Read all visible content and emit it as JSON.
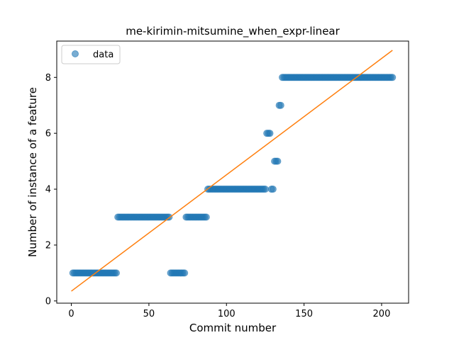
{
  "chart_data": {
    "type": "scatter",
    "title": "me-kirimin-mitsumine_when_expr-linear",
    "xlabel": "Commit number",
    "ylabel": "Number of instance of a feature",
    "xlim": [
      -9.4,
      217.4
    ],
    "ylim": [
      -0.08,
      9.3
    ],
    "xticks": [
      0,
      50,
      100,
      150,
      200
    ],
    "yticks": [
      0,
      2,
      4,
      6,
      8
    ],
    "legend": {
      "location": "upper-left",
      "entries": [
        "data"
      ]
    },
    "colors": {
      "points": "#1f77b4",
      "fit_line": "#ff7f0e"
    },
    "grid": false,
    "series": [
      {
        "name": "data",
        "kind": "points",
        "segments": [
          {
            "x_start": 1,
            "x_end": 29,
            "y": 1
          },
          {
            "x_start": 30,
            "x_end": 63,
            "y": 3
          },
          {
            "x_start": 64,
            "x_end": 73,
            "y": 1
          },
          {
            "x_start": 74,
            "x_end": 87,
            "y": 3
          },
          {
            "x_start": 88,
            "x_end": 125,
            "y": 4
          },
          {
            "x_start": 126,
            "x_end": 128,
            "y": 6
          },
          {
            "x_start": 129,
            "x_end": 130,
            "y": 4
          },
          {
            "x_start": 131,
            "x_end": 133,
            "y": 5
          },
          {
            "x_start": 134,
            "x_end": 135,
            "y": 7
          },
          {
            "x_start": 136,
            "x_end": 207,
            "y": 8
          }
        ]
      },
      {
        "kind": "line",
        "points": [
          [
            0,
            0.35
          ],
          [
            207,
            8.97
          ]
        ]
      }
    ]
  }
}
